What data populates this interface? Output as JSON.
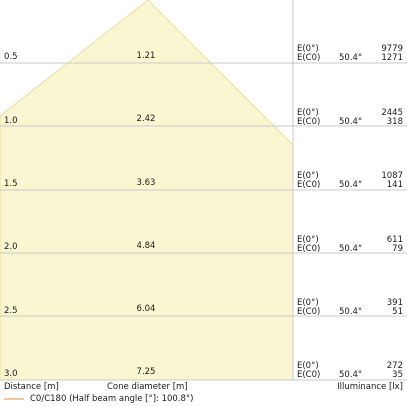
{
  "chart_data": {
    "type": "area",
    "distance_unit_label": "Distance [m]",
    "cone_label": "Cone diameter [m]",
    "illuminance_label": "Illuminance [lx]",
    "legend": "C0/C180 (Half beam angle [°]: 100.8°)",
    "colors": {
      "cone": "#fbf6d2",
      "cone_edge": "#eadf9c",
      "grid": "#c8c8c8",
      "legend_line": "#f2b37a"
    },
    "rows": [
      {
        "distance": "0.5",
        "cone": "1.21",
        "e0": "E(0°)",
        "ec0": "E(C0)",
        "angle": "50.4°",
        "e0_value": "9779",
        "ec0_value": "1271"
      },
      {
        "distance": "1.0",
        "cone": "2.42",
        "e0": "E(0°)",
        "ec0": "E(C0)",
        "angle": "50.4°",
        "e0_value": "2445",
        "ec0_value": "318"
      },
      {
        "distance": "1.5",
        "cone": "3.63",
        "e0": "E(0°)",
        "ec0": "E(C0)",
        "angle": "50.4°",
        "e0_value": "1087",
        "ec0_value": "141"
      },
      {
        "distance": "2.0",
        "cone": "4.84",
        "e0": "E(0°)",
        "ec0": "E(C0)",
        "angle": "50.4°",
        "e0_value": "611",
        "ec0_value": "79"
      },
      {
        "distance": "2.5",
        "cone": "6.04",
        "e0": "E(0°)",
        "ec0": "E(C0)",
        "angle": "50.4°",
        "e0_value": "391",
        "ec0_value": "51"
      },
      {
        "distance": "3.0",
        "cone": "7.25",
        "e0": "E(0°)",
        "ec0": "E(C0)",
        "angle": "50.4°",
        "e0_value": "272",
        "ec0_value": "35"
      }
    ]
  }
}
